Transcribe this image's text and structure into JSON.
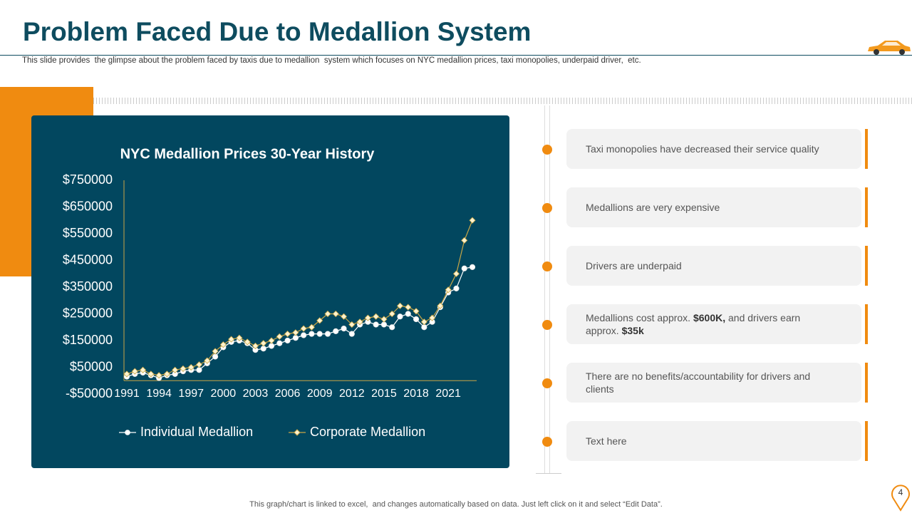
{
  "header": {
    "title": "Problem Faced Due to Medallion System",
    "subtitle": "This slide provides  the glimpse about the problem faced by taxis due to medallion  system which focuses on NYC medallion prices, taxi monopolies, underpaid driver,  etc."
  },
  "chart_data": {
    "type": "line",
    "title": "NYC  Medallion  Prices  30-Year History",
    "categories": [
      "1991",
      null,
      null,
      null,
      "1994",
      null,
      null,
      null,
      "1997",
      null,
      null,
      null,
      "2000",
      null,
      null,
      null,
      "2003",
      null,
      null,
      null,
      "2006",
      null,
      null,
      null,
      "2009",
      null,
      null,
      null,
      "2012",
      null,
      null,
      null,
      "2015",
      null,
      null,
      null,
      "2018",
      null,
      null,
      null,
      "2021",
      null,
      null,
      null
    ],
    "series": [
      {
        "name": "Individual Medallion",
        "color": "#ffffff",
        "marker": "circle",
        "values": [
          15000,
          25000,
          30000,
          20000,
          10000,
          20000,
          25000,
          35000,
          40000,
          40000,
          65000,
          90000,
          125000,
          145000,
          150000,
          140000,
          115000,
          120000,
          130000,
          140000,
          150000,
          160000,
          170000,
          175000,
          175000,
          175000,
          185000,
          195000,
          175000,
          210000,
          220000,
          210000,
          210000,
          200000,
          240000,
          250000,
          230000,
          200000,
          220000,
          275000,
          330000,
          345000,
          420000,
          425000
        ]
      },
      {
        "name": "Corporate Medallion",
        "color": "#c9a646",
        "marker": "diamond",
        "values": [
          25000,
          35000,
          40000,
          25000,
          20000,
          25000,
          40000,
          45000,
          50000,
          60000,
          75000,
          110000,
          135000,
          155000,
          160000,
          145000,
          130000,
          140000,
          150000,
          165000,
          175000,
          180000,
          195000,
          200000,
          225000,
          250000,
          250000,
          240000,
          210000,
          220000,
          235000,
          240000,
          230000,
          250000,
          280000,
          275000,
          260000,
          220000,
          235000,
          280000,
          340000,
          400000,
          525000,
          600000
        ]
      }
    ],
    "ylim": [
      -50000,
      750000
    ],
    "yticks": [
      {
        "value": -50000,
        "label": "-$50000"
      },
      {
        "value": 50000,
        "label": "$50000"
      },
      {
        "value": 150000,
        "label": "$150000"
      },
      {
        "value": 250000,
        "label": "$250000"
      },
      {
        "value": 350000,
        "label": "$350000"
      },
      {
        "value": 450000,
        "label": "$450000"
      },
      {
        "value": 550000,
        "label": "$550000"
      },
      {
        "value": 650000,
        "label": "$650000"
      },
      {
        "value": 750000,
        "label": "$750000"
      }
    ],
    "grid": false,
    "legend": "bottom"
  },
  "items": [
    {
      "segments": [
        {
          "text": "Taxi monopolies have decreased their service quality",
          "bold": false
        }
      ]
    },
    {
      "segments": [
        {
          "text": "Medallions are very expensive",
          "bold": false
        }
      ]
    },
    {
      "segments": [
        {
          "text": "Drivers are underpaid",
          "bold": false
        }
      ]
    },
    {
      "segments": [
        {
          "text": "Medallions cost approx. ",
          "bold": false
        },
        {
          "text": "$600K,",
          "bold": true
        },
        {
          "text": " and drivers earn approx. ",
          "bold": false
        },
        {
          "text": "$35k",
          "bold": true
        }
      ]
    },
    {
      "segments": [
        {
          "text": "There are no benefits/accountability for drivers and clients",
          "bold": false
        }
      ]
    },
    {
      "segments": [
        {
          "text": "Text here",
          "bold": false
        }
      ]
    }
  ],
  "footer": "This graph/chart is linked to excel,  and changes automatically based on data. Just left click on it and select “Edit Data”.",
  "page_number": "4"
}
